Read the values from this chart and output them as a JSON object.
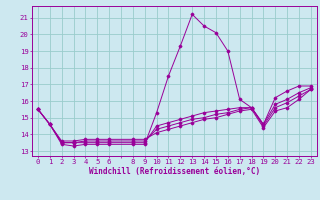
{
  "bg_color": "#cde8f0",
  "line_color": "#990099",
  "grid_color": "#99cccc",
  "xlabel": "Windchill (Refroidissement éolien,°C)",
  "xlabel_fontsize": 5.5,
  "tick_fontsize": 5.2,
  "xlim": [
    -0.5,
    23.5
  ],
  "ylim": [
    12.7,
    21.7
  ],
  "yticks": [
    13,
    14,
    15,
    16,
    17,
    18,
    19,
    20,
    21
  ],
  "xticks": [
    0,
    1,
    2,
    3,
    4,
    5,
    6,
    7,
    8,
    9,
    10,
    11,
    12,
    13,
    14,
    15,
    16,
    17,
    18,
    19,
    20,
    21,
    22,
    23
  ],
  "xtick_labels": [
    "0",
    "1",
    "2",
    "3",
    "4",
    "5",
    "6",
    "",
    "8",
    "9",
    "10",
    "11",
    "12",
    "13",
    "14",
    "15",
    "16",
    "17",
    "18",
    "19",
    "20",
    "21",
    "22",
    "23"
  ],
  "series": [
    {
      "x": [
        0,
        1,
        2,
        3,
        4,
        5,
        6,
        8,
        9,
        10,
        11,
        12,
        13,
        14,
        15,
        16,
        17,
        18,
        19,
        20,
        21,
        22,
        23
      ],
      "y": [
        15.5,
        14.6,
        13.4,
        13.3,
        13.4,
        13.4,
        13.4,
        13.4,
        13.4,
        15.3,
        17.5,
        19.3,
        21.2,
        20.5,
        20.1,
        19.0,
        16.1,
        15.6,
        14.6,
        16.2,
        16.6,
        16.9,
        16.9
      ]
    },
    {
      "x": [
        0,
        1,
        2,
        3,
        4,
        5,
        6,
        8,
        9,
        10,
        11,
        12,
        13,
        14,
        15,
        16,
        17,
        18,
        19,
        20,
        21,
        22,
        23
      ],
      "y": [
        15.5,
        14.6,
        13.5,
        13.5,
        13.5,
        13.5,
        13.5,
        13.5,
        13.5,
        14.5,
        14.7,
        14.9,
        15.1,
        15.3,
        15.4,
        15.5,
        15.6,
        15.6,
        14.6,
        15.8,
        16.1,
        16.5,
        16.8
      ]
    },
    {
      "x": [
        0,
        1,
        2,
        3,
        4,
        5,
        6,
        8,
        9,
        10,
        11,
        12,
        13,
        14,
        15,
        16,
        17,
        18,
        19,
        20,
        21,
        22,
        23
      ],
      "y": [
        15.5,
        14.6,
        13.5,
        13.5,
        13.6,
        13.6,
        13.6,
        13.6,
        13.6,
        14.3,
        14.5,
        14.7,
        14.9,
        15.0,
        15.2,
        15.3,
        15.5,
        15.6,
        14.5,
        15.6,
        15.9,
        16.3,
        16.7
      ]
    },
    {
      "x": [
        0,
        1,
        2,
        3,
        4,
        5,
        6,
        8,
        9,
        10,
        11,
        12,
        13,
        14,
        15,
        16,
        17,
        18,
        19,
        20,
        21,
        22,
        23
      ],
      "y": [
        15.5,
        14.6,
        13.6,
        13.6,
        13.7,
        13.7,
        13.7,
        13.7,
        13.7,
        14.1,
        14.3,
        14.5,
        14.7,
        14.9,
        15.0,
        15.2,
        15.4,
        15.5,
        14.4,
        15.4,
        15.6,
        16.1,
        16.7
      ]
    }
  ]
}
